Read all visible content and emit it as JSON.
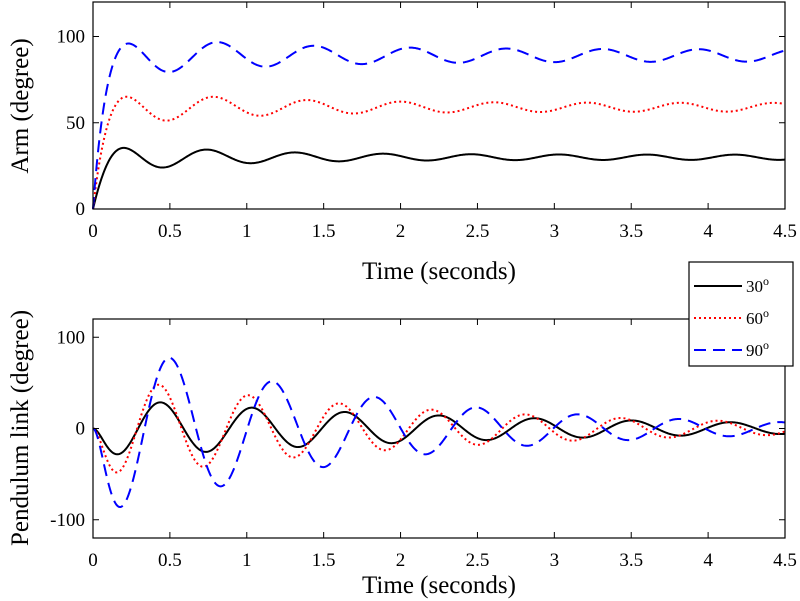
{
  "chart_data": [
    {
      "type": "line",
      "id": "top",
      "xlabel": "Time (seconds)",
      "ylabel": "Arm (degree)",
      "xlim": [
        0,
        4.5
      ],
      "ylim": [
        0,
        120
      ],
      "xticks": [
        0,
        0.5,
        1,
        1.5,
        2,
        2.5,
        3,
        3.5,
        4,
        4.5
      ],
      "xtick_labels": [
        "0",
        "0.5",
        "1",
        "1.5",
        "2",
        "2.5",
        "3",
        "3.5",
        "4",
        "4.5"
      ],
      "yticks": [
        0,
        50,
        100
      ],
      "ytick_labels": [
        "0",
        "50",
        "100"
      ],
      "grid": false,
      "series": [
        {
          "name": "30o",
          "color": "#000000",
          "dash": "solid",
          "model": {
            "kind": "step",
            "final": 30,
            "amp0": 10,
            "tau": 0.7,
            "amp_floor": 1.5,
            "freq": 1.75,
            "rise": 0.07,
            "phase": -0.35
          }
        },
        {
          "name": "60o",
          "color": "#ff0000",
          "dash": "dotted",
          "model": {
            "kind": "step",
            "final": 59,
            "amp0": 12,
            "tau": 0.8,
            "amp_floor": 2.5,
            "freq": 1.65,
            "rise": 0.07,
            "phase": -0.33
          }
        },
        {
          "name": "90o",
          "color": "#0000ff",
          "dash": "dashed",
          "model": {
            "kind": "step",
            "final": 89,
            "amp0": 14,
            "tau": 0.9,
            "amp_floor": 3.5,
            "freq": 1.6,
            "rise": 0.07,
            "phase": -0.33
          }
        }
      ]
    },
    {
      "type": "line",
      "id": "bottom",
      "xlabel": "Time (seconds)",
      "ylabel": "Pendulum link (degree)",
      "xlim": [
        0,
        4.5
      ],
      "ylim": [
        -120,
        120
      ],
      "xticks": [
        0,
        0.5,
        1,
        1.5,
        2,
        2.5,
        3,
        3.5,
        4,
        4.5
      ],
      "xtick_labels": [
        "0",
        "0.5",
        "1",
        "1.5",
        "2",
        "2.5",
        "3",
        "3.5",
        "4",
        "4.5"
      ],
      "yticks": [
        -100,
        0,
        100
      ],
      "ytick_labels": [
        "-100",
        "0",
        "100"
      ],
      "grid": false,
      "legend": {
        "placement": "top-right",
        "entries": [
          {
            "base": "30",
            "sup": "o",
            "color": "#000000",
            "dash": "solid"
          },
          {
            "base": "60",
            "sup": "o",
            "color": "#ff0000",
            "dash": "dotted"
          },
          {
            "base": "90",
            "sup": "o",
            "color": "#0000ff",
            "dash": "dashed"
          }
        ]
      },
      "series": [
        {
          "name": "30o",
          "color": "#000000",
          "dash": "solid",
          "model": {
            "kind": "osc",
            "amp0": 34,
            "tau": 2.6,
            "f0": 1.71,
            "f1": 1.53,
            "ramp": 14
          }
        },
        {
          "name": "60o",
          "color": "#ff0000",
          "dash": "dotted",
          "model": {
            "kind": "osc",
            "amp0": 59,
            "tau": 2.1,
            "f0": 1.75,
            "f1": 1.55,
            "ramp": 14
          }
        },
        {
          "name": "90o",
          "color": "#0000ff",
          "dash": "dashed",
          "model": {
            "kind": "osc",
            "amp0": 105,
            "tau": 1.65,
            "f0": 1.49,
            "f1": 1.53,
            "ramp": 14
          }
        }
      ]
    }
  ]
}
